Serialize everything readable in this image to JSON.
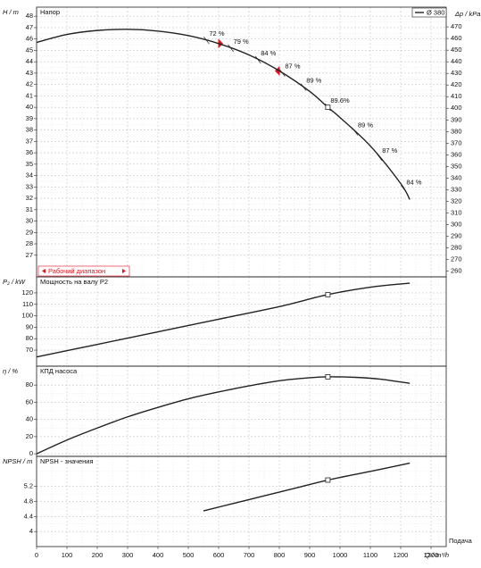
{
  "chart_data": [
    {
      "type": "line",
      "title": "Напор",
      "y_label": "H / m",
      "y2_label": "Δp / kPa",
      "ylim": [
        25.1,
        48.8
      ],
      "yticks": [
        27,
        28,
        29,
        30,
        31,
        32,
        33,
        34,
        35,
        36,
        37,
        38,
        39,
        40,
        41,
        42,
        43,
        44,
        45,
        46,
        47,
        48
      ],
      "y2lim": [
        255,
        487
      ],
      "y2ticks": [
        260,
        270,
        280,
        290,
        300,
        310,
        320,
        330,
        340,
        350,
        360,
        370,
        380,
        390,
        400,
        410,
        420,
        430,
        440,
        450,
        460,
        470
      ],
      "x": [
        0,
        100,
        200,
        300,
        400,
        500,
        600,
        700,
        800,
        900,
        960,
        1000,
        1100,
        1200,
        1230
      ],
      "series": [
        {
          "name": "Ø 380",
          "color": "#222222",
          "values": [
            45.7,
            46.4,
            46.75,
            46.85,
            46.7,
            46.3,
            45.6,
            44.6,
            43.2,
            41.4,
            40.0,
            39.1,
            36.6,
            33.3,
            31.9
          ]
        }
      ],
      "duty_point": {
        "x": 960,
        "y": 40.0
      },
      "annotations": [
        {
          "text": "72 %",
          "x": 560
        },
        {
          "text": "79 %",
          "x": 640
        },
        {
          "text": "84 %",
          "x": 730
        },
        {
          "text": "87 %",
          "x": 810
        },
        {
          "text": "89 %",
          "x": 880
        },
        {
          "text": "89.6%",
          "x": 960
        },
        {
          "text": "89 %",
          "x": 1050
        },
        {
          "text": "87 %",
          "x": 1130
        },
        {
          "text": "84 %",
          "x": 1210
        }
      ],
      "operating_range": {
        "label": "Рабочий диапазон",
        "x": [
          600,
          800
        ],
        "color": "#e8101a"
      },
      "grid": true
    },
    {
      "type": "line",
      "title": "Мощность на валу P2",
      "y_label": "P₂ / kW",
      "ylim": [
        56,
        134
      ],
      "yticks": [
        70,
        80,
        90,
        100,
        110,
        120
      ],
      "x": [
        0,
        200,
        400,
        600,
        800,
        960,
        1100,
        1230
      ],
      "series": [
        {
          "color": "#222222",
          "values": [
            64,
            75,
            86,
            97,
            108,
            118.5,
            125,
            128.5
          ]
        }
      ],
      "duty_point": {
        "x": 960,
        "y": 118.5
      },
      "grid": true
    },
    {
      "type": "line",
      "title": "КПД насоса",
      "y_label": "η / %",
      "ylim": [
        -3,
        102
      ],
      "yticks": [
        0,
        20,
        40,
        60,
        80
      ],
      "x": [
        0,
        100,
        200,
        300,
        400,
        500,
        600,
        700,
        800,
        900,
        960,
        1050,
        1130,
        1230
      ],
      "series": [
        {
          "color": "#222222",
          "values": [
            0,
            16,
            30,
            43,
            54,
            64,
            72,
            79,
            85,
            88.5,
            89.6,
            89,
            87,
            82
          ]
        }
      ],
      "duty_point": {
        "x": 960,
        "y": 89.6
      },
      "grid": true
    },
    {
      "type": "line",
      "title": "NPSH - значения",
      "y_label": "NPSH / m",
      "x_label": "Q / m³/h",
      "x_title": "Подача",
      "ylim": [
        3.6,
        6.0
      ],
      "yticks": [
        4,
        4.4,
        4.8,
        5.2
      ],
      "xlim": [
        0,
        1350
      ],
      "xticks": [
        0,
        100,
        200,
        300,
        400,
        500,
        600,
        700,
        800,
        900,
        1000,
        1100,
        1200,
        1300
      ],
      "x": [
        550,
        700,
        850,
        960,
        1100,
        1230
      ],
      "series": [
        {
          "color": "#222222",
          "values": [
            4.55,
            4.85,
            5.15,
            5.37,
            5.6,
            5.82
          ]
        }
      ],
      "duty_point": {
        "x": 960,
        "y": 5.37
      },
      "grid": true
    }
  ]
}
